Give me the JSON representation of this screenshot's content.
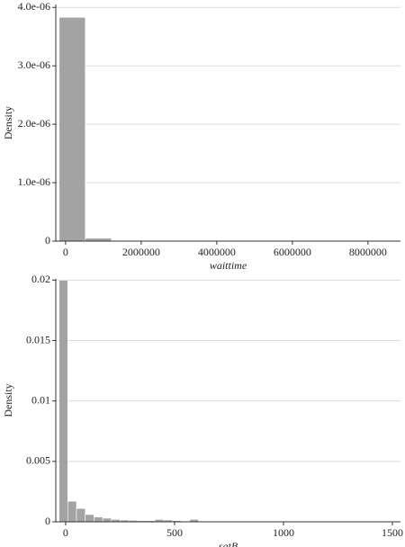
{
  "chart_data": [
    {
      "type": "histogram",
      "x_label": "waittime",
      "y_label": "Density",
      "bins": [
        -170000,
        520000,
        1210000,
        1900000,
        2590000,
        3280000,
        3970000,
        4660000,
        5350000,
        6040000,
        6730000,
        7420000,
        8110000,
        8800000
      ],
      "values": [
        3.83e-06,
        5e-08,
        1e-08,
        5e-09,
        5e-09,
        3e-09,
        5e-09,
        3e-09,
        2e-09,
        2e-09,
        2e-09,
        1e-09,
        2e-09
      ],
      "color": "#a3a3a3",
      "xlim": [
        -260000,
        8860000
      ],
      "ylim": [
        0,
        4.05e-06
      ],
      "xticks": [
        0,
        2000000,
        4000000,
        6000000,
        8000000
      ],
      "yticks": [
        0,
        {
          "value": 1e-06,
          "label": "1.0e-06"
        },
        {
          "value": 2e-06,
          "label": "2.0e-06"
        },
        {
          "value": 3e-06,
          "label": "3.0e-06"
        },
        {
          "value": 4e-06,
          "label": "4.0e-06"
        }
      ],
      "grid": true
    },
    {
      "type": "histogram",
      "x_label": "satB",
      "y_label": "Density",
      "bins": [
        -30,
        10,
        50,
        90,
        130,
        170,
        210,
        250,
        290,
        330,
        370,
        410,
        450,
        490,
        530,
        570,
        610,
        650,
        690,
        730,
        770,
        810,
        850,
        890,
        930,
        970,
        1010,
        1050,
        1090,
        1130,
        1170,
        1210,
        1250,
        1290,
        1330,
        1370,
        1410,
        1450,
        1490,
        1530
      ],
      "values": [
        0.02,
        0.0017,
        0.0011,
        0.0006,
        0.0004,
        0.0003,
        0.0002,
        0.00015,
        0.00012,
        0.0001,
        0.0001,
        0.0002,
        0.00015,
        0.0001,
        5e-05,
        0.0002,
        5e-05,
        3e-05,
        3e-05,
        3e-05,
        2e-05,
        2e-05,
        3e-05,
        2e-05,
        2e-05,
        2e-05,
        1e-05,
        1e-05,
        2e-05,
        1e-05,
        1e-05,
        1e-05,
        1e-05,
        1e-05,
        1e-05,
        1e-05,
        1e-05,
        1e-05,
        1e-05
      ],
      "color": "#a3a3a3",
      "xlim": [
        -45,
        1537
      ],
      "ylim": [
        0,
        0.0201
      ],
      "xticks": [
        0,
        500,
        1000,
        1500
      ],
      "yticks": [
        0,
        0.005,
        0.01,
        0.015,
        0.02
      ],
      "grid": true
    }
  ]
}
